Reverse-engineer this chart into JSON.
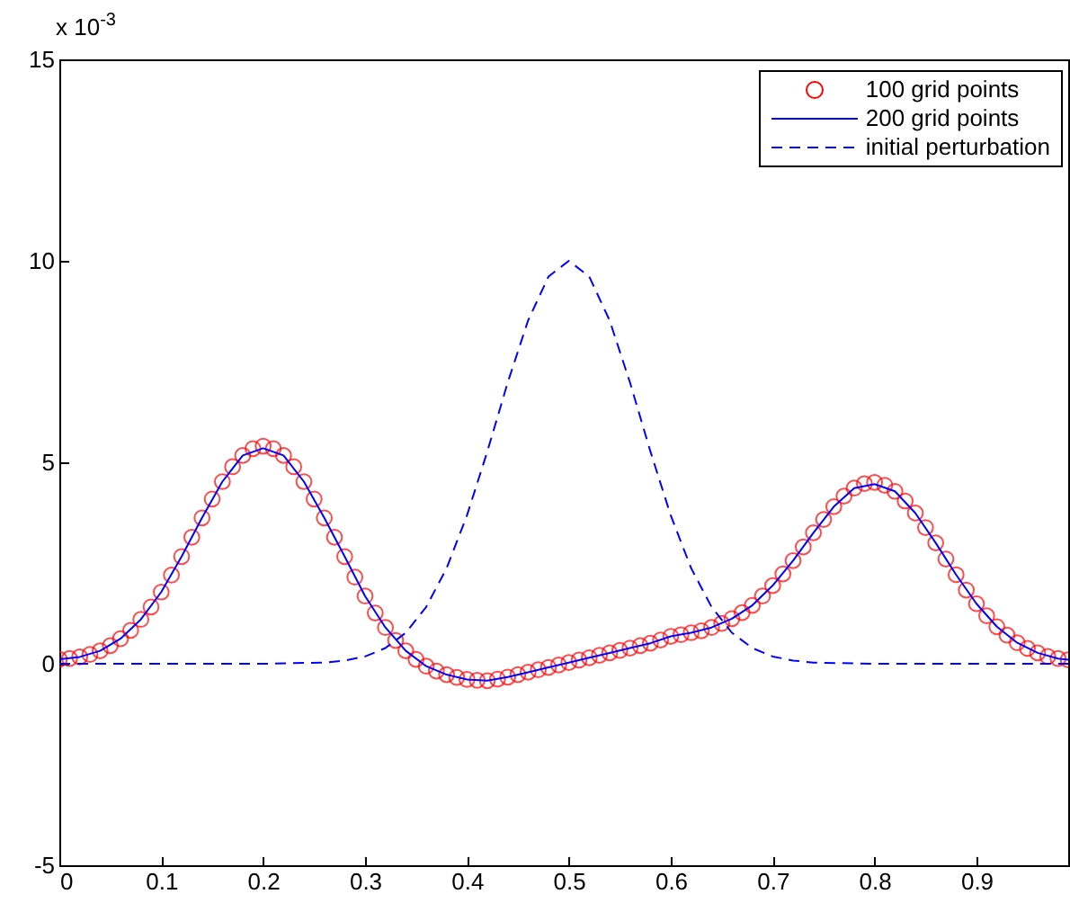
{
  "chart_data": {
    "type": "line",
    "annotations": [
      "x 10$^{-3}$"
    ],
    "xlim": [
      0,
      0.99
    ],
    "xticks": [
      0,
      0.1,
      0.2,
      0.3,
      0.4,
      0.5,
      0.6,
      0.7,
      0.8,
      0.9
    ],
    "ylim": [
      -5,
      15
    ],
    "yticks": [
      -5,
      0,
      5,
      10,
      15
    ],
    "grid": false,
    "legend": "top right",
    "series": [
      {
        "name": "100 grid points",
        "type": "scatter",
        "marker": "circle",
        "color": "#ff0000",
        "x": [
          0,
          0.01,
          0.02,
          0.03,
          0.04,
          0.05,
          0.06,
          0.07,
          0.08,
          0.09,
          0.1,
          0.11,
          0.12,
          0.13,
          0.14,
          0.15,
          0.16,
          0.17,
          0.18,
          0.19,
          0.2,
          0.21,
          0.22,
          0.23,
          0.24,
          0.25,
          0.26,
          0.27,
          0.28,
          0.29,
          0.3,
          0.31,
          0.32,
          0.33,
          0.34,
          0.35,
          0.36,
          0.37,
          0.38,
          0.39,
          0.4,
          0.41,
          0.42,
          0.43,
          0.44,
          0.45,
          0.46,
          0.47,
          0.48,
          0.49,
          0.5,
          0.51,
          0.52,
          0.53,
          0.54,
          0.55,
          0.56,
          0.57,
          0.58,
          0.59,
          0.6,
          0.61,
          0.62,
          0.63,
          0.64,
          0.65,
          0.66,
          0.67,
          0.68,
          0.69,
          0.7,
          0.71,
          0.72,
          0.73,
          0.74,
          0.75,
          0.76,
          0.77,
          0.78,
          0.79,
          0.8,
          0.81,
          0.82,
          0.83,
          0.84,
          0.85,
          0.86,
          0.87,
          0.88,
          0.89,
          0.9,
          0.91,
          0.92,
          0.93,
          0.94,
          0.95,
          0.96,
          0.97,
          0.98,
          0.99
        ],
        "values": [
          0.11,
          0.13,
          0.17,
          0.23,
          0.32,
          0.45,
          0.62,
          0.83,
          1.1,
          1.41,
          1.78,
          2.2,
          2.66,
          3.14,
          3.62,
          4.09,
          4.52,
          4.89,
          5.17,
          5.34,
          5.4,
          5.34,
          5.17,
          4.89,
          4.52,
          4.09,
          3.62,
          3.14,
          2.66,
          2.15,
          1.68,
          1.26,
          0.9,
          0.58,
          0.32,
          0.11,
          -0.06,
          -0.18,
          -0.27,
          -0.34,
          -0.39,
          -0.41,
          -0.42,
          -0.38,
          -0.33,
          -0.27,
          -0.21,
          -0.15,
          -0.09,
          -0.03,
          0.03,
          0.09,
          0.15,
          0.21,
          0.27,
          0.33,
          0.39,
          0.45,
          0.51,
          0.59,
          0.68,
          0.72,
          0.77,
          0.82,
          0.9,
          1.0,
          1.12,
          1.27,
          1.45,
          1.68,
          1.94,
          2.23,
          2.56,
          2.9,
          3.25,
          3.58,
          3.9,
          4.16,
          4.36,
          4.47,
          4.5,
          4.43,
          4.28,
          4.04,
          3.74,
          3.38,
          3.0,
          2.6,
          2.21,
          1.83,
          1.49,
          1.19,
          0.92,
          0.71,
          0.52,
          0.38,
          0.27,
          0.18,
          0.13,
          0.1
        ]
      },
      {
        "name": "200 grid points",
        "line_style": "solid",
        "color": "#0000ff",
        "x": [
          0,
          0.02,
          0.04,
          0.06,
          0.08,
          0.1,
          0.12,
          0.14,
          0.16,
          0.18,
          0.2,
          0.22,
          0.24,
          0.26,
          0.28,
          0.3,
          0.32,
          0.34,
          0.36,
          0.38,
          0.4,
          0.42,
          0.44,
          0.46,
          0.48,
          0.5,
          0.52,
          0.54,
          0.56,
          0.58,
          0.6,
          0.62,
          0.64,
          0.66,
          0.68,
          0.7,
          0.72,
          0.74,
          0.76,
          0.78,
          0.8,
          0.82,
          0.84,
          0.86,
          0.88,
          0.9,
          0.92,
          0.94,
          0.96,
          0.98,
          0.99
        ],
        "values": [
          0.11,
          0.17,
          0.32,
          0.62,
          1.1,
          1.78,
          2.66,
          3.62,
          4.52,
          5.17,
          5.35,
          5.17,
          4.52,
          3.62,
          2.66,
          1.68,
          0.9,
          0.32,
          -0.06,
          -0.27,
          -0.39,
          -0.42,
          -0.33,
          -0.21,
          -0.09,
          0.03,
          0.15,
          0.27,
          0.39,
          0.51,
          0.68,
          0.77,
          0.9,
          1.12,
          1.45,
          1.94,
          2.56,
          3.25,
          3.9,
          4.36,
          4.46,
          4.28,
          3.74,
          3.0,
          2.21,
          1.49,
          0.92,
          0.52,
          0.27,
          0.13,
          0.1
        ]
      },
      {
        "name": "initial perturbation",
        "line_style": "dashed",
        "color": "#0000ff",
        "x": [
          0,
          0.1,
          0.2,
          0.26,
          0.28,
          0.3,
          0.32,
          0.34,
          0.36,
          0.38,
          0.4,
          0.42,
          0.44,
          0.46,
          0.48,
          0.5,
          0.52,
          0.54,
          0.56,
          0.58,
          0.6,
          0.62,
          0.64,
          0.66,
          0.68,
          0.7,
          0.72,
          0.74,
          0.8,
          0.9,
          0.99
        ],
        "values": [
          0,
          0,
          0,
          0.03,
          0.08,
          0.18,
          0.39,
          0.77,
          1.41,
          2.37,
          3.68,
          5.27,
          6.98,
          8.52,
          9.61,
          10,
          9.61,
          8.52,
          6.98,
          5.27,
          3.68,
          2.37,
          1.41,
          0.77,
          0.39,
          0.18,
          0.08,
          0.03,
          0,
          0,
          0
        ]
      }
    ]
  }
}
